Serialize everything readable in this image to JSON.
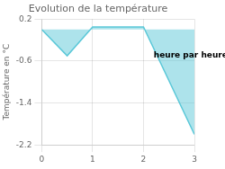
{
  "chart_data": {
    "type": "area",
    "title": "Evolution de la température",
    "ylabel": "Température en °C",
    "annotations": [
      {
        "text": "heure par heure",
        "x": 2.2,
        "y": -0.5
      }
    ],
    "x": [
      0,
      0.5,
      1,
      2,
      3
    ],
    "values": [
      0.0,
      -0.5,
      0.05,
      0.05,
      -2.0
    ],
    "color": "#5bc8d8",
    "xlim": [
      0,
      3
    ],
    "ylim": [
      -2.2,
      0.2
    ],
    "xticks": [
      0,
      1,
      2,
      3
    ],
    "yticks": [
      0.2,
      -0.6,
      -1.4,
      -2.2
    ],
    "grid": true
  }
}
